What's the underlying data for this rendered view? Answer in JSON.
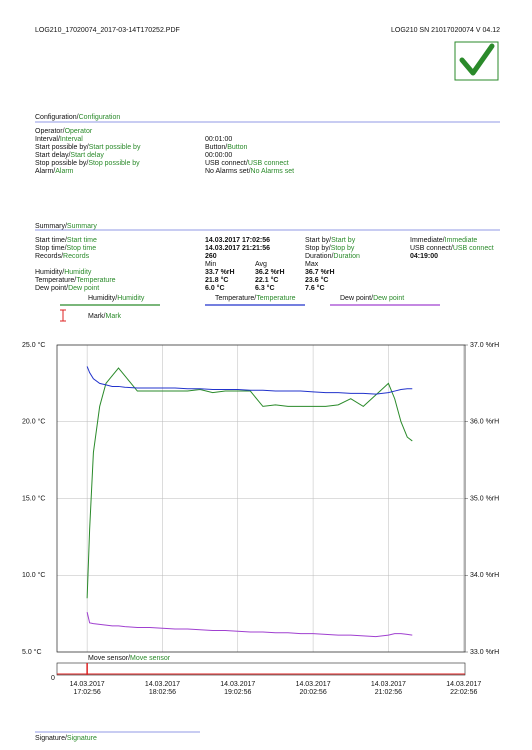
{
  "header": {
    "file": "LOG210_17020074_2017-03-14T170252.PDF",
    "device": "LOG210  SN 21017020074  V 04.12"
  },
  "configuration": {
    "title": "Configuration/Configuration",
    "rows": [
      {
        "label": "Operator/Operator"
      },
      {
        "label": "Interval/Interval",
        "value": "00:01:00"
      },
      {
        "label": "Start possible by/Start possible by",
        "value": "Button/Button"
      },
      {
        "label": "Start delay/Start delay",
        "value": "00:00:00"
      },
      {
        "label": "Stop possible by/Stop possible by",
        "value": "USB connect/USB connect"
      },
      {
        "label": "Alarm/Alarm",
        "value": "No Alarms set/No Alarms set"
      }
    ]
  },
  "summary": {
    "title": "Summary/Summary",
    "rows": [
      {
        "label": "Start time/Start time",
        "value": "14.03.2017 17:02:56",
        "label2": "Start by/Start by",
        "value2": "Immediate/Immediate"
      },
      {
        "label": "Stop time/Stop time",
        "value": "14.03.2017 21:21:56",
        "label2": "Stop by/Stop by",
        "value2": "USB connect/USB connect"
      },
      {
        "label": "Records/Records",
        "value": "260",
        "label2": "Duration/Duration",
        "value2": "04:19:00"
      }
    ],
    "stats_header": [
      "Min",
      "Avg",
      "Max"
    ],
    "stats": [
      {
        "label": "Humidity/Humidity",
        "values": [
          "33.7 %rH",
          "36.2 %rH",
          "36.7 %rH"
        ]
      },
      {
        "label": "Temperature/Temperature",
        "values": [
          "21.8 °C",
          "22.1 °C",
          "23.6 °C"
        ]
      },
      {
        "label": "Dew point/Dew point",
        "values": [
          "6.0 °C",
          "6.3 °C",
          "7.6 °C"
        ]
      }
    ]
  },
  "mark_legend": "Mark/Mark",
  "move_sensor": {
    "label": "Move sensor/Move sensor",
    "value": "0"
  },
  "signature": "Signature/Signature",
  "chart_data": {
    "type": "line",
    "grid": true,
    "x": [
      0,
      2,
      5,
      10,
      15,
      20,
      25,
      30,
      40,
      50,
      60,
      70,
      80,
      90,
      100,
      110,
      120,
      130,
      140,
      150,
      160,
      170,
      180,
      190,
      200,
      210,
      220,
      230,
      240,
      245,
      250,
      255,
      259
    ],
    "xlim": [
      -24,
      301
    ],
    "xticks": [
      {
        "value": 0,
        "label": "14.03.2017 17:02:56"
      },
      {
        "value": 60,
        "label": "14.03.2017 18:02:56"
      },
      {
        "value": 120,
        "label": "14.03.2017 19:02:56"
      },
      {
        "value": 180,
        "label": "14.03.2017 20:02:56"
      },
      {
        "value": 240,
        "label": "14.03.2017 21:02:56"
      },
      {
        "value": 300,
        "label": "14.03.2017 22:02:56"
      }
    ],
    "ylim": [
      5,
      25
    ],
    "yticks": [
      {
        "value": 25,
        "label": "25.0 °C"
      },
      {
        "value": 20,
        "label": "20.0 °C"
      },
      {
        "value": 15,
        "label": "15.0 °C"
      },
      {
        "value": 10,
        "label": "10.0 °C"
      },
      {
        "value": 5,
        "label": "5.0 °C"
      }
    ],
    "y2lim": [
      33,
      37
    ],
    "y2ticks": [
      {
        "value": 37,
        "label": "37.0 %rH"
      },
      {
        "value": 36,
        "label": "36.0 %rH"
      },
      {
        "value": 35,
        "label": "35.0 %rH"
      },
      {
        "value": 34,
        "label": "34.0 %rH"
      },
      {
        "value": 33,
        "label": "33.0 %rH"
      }
    ],
    "series": [
      {
        "name": "Humidity/Humidity",
        "color": "#2a8a2a",
        "axis": "y2",
        "values": [
          33.7,
          34.6,
          35.6,
          36.2,
          36.5,
          36.6,
          36.7,
          36.6,
          36.4,
          36.4,
          36.4,
          36.4,
          36.4,
          36.42,
          36.38,
          36.4,
          36.4,
          36.4,
          36.2,
          36.22,
          36.2,
          36.2,
          36.2,
          36.2,
          36.22,
          36.3,
          36.2,
          36.35,
          36.5,
          36.3,
          36.0,
          35.8,
          35.75
        ]
      },
      {
        "name": "Temperature/Temperature",
        "color": "#2233cc",
        "values": [
          23.6,
          23.2,
          22.8,
          22.5,
          22.4,
          22.3,
          22.3,
          22.25,
          22.2,
          22.2,
          22.2,
          22.2,
          22.15,
          22.15,
          22.1,
          22.1,
          22.1,
          22.05,
          22.05,
          22.0,
          22.0,
          22.0,
          21.95,
          21.9,
          21.9,
          21.85,
          21.85,
          21.8,
          21.9,
          22.0,
          22.1,
          22.15,
          22.15
        ]
      },
      {
        "name": "Dew point/Dew point",
        "color": "#a040d0",
        "values": [
          7.6,
          6.9,
          6.85,
          6.8,
          6.75,
          6.7,
          6.7,
          6.65,
          6.6,
          6.6,
          6.55,
          6.5,
          6.5,
          6.45,
          6.4,
          6.4,
          6.35,
          6.3,
          6.3,
          6.25,
          6.25,
          6.2,
          6.2,
          6.15,
          6.1,
          6.1,
          6.05,
          6.0,
          6.1,
          6.2,
          6.2,
          6.15,
          6.1
        ]
      }
    ]
  }
}
